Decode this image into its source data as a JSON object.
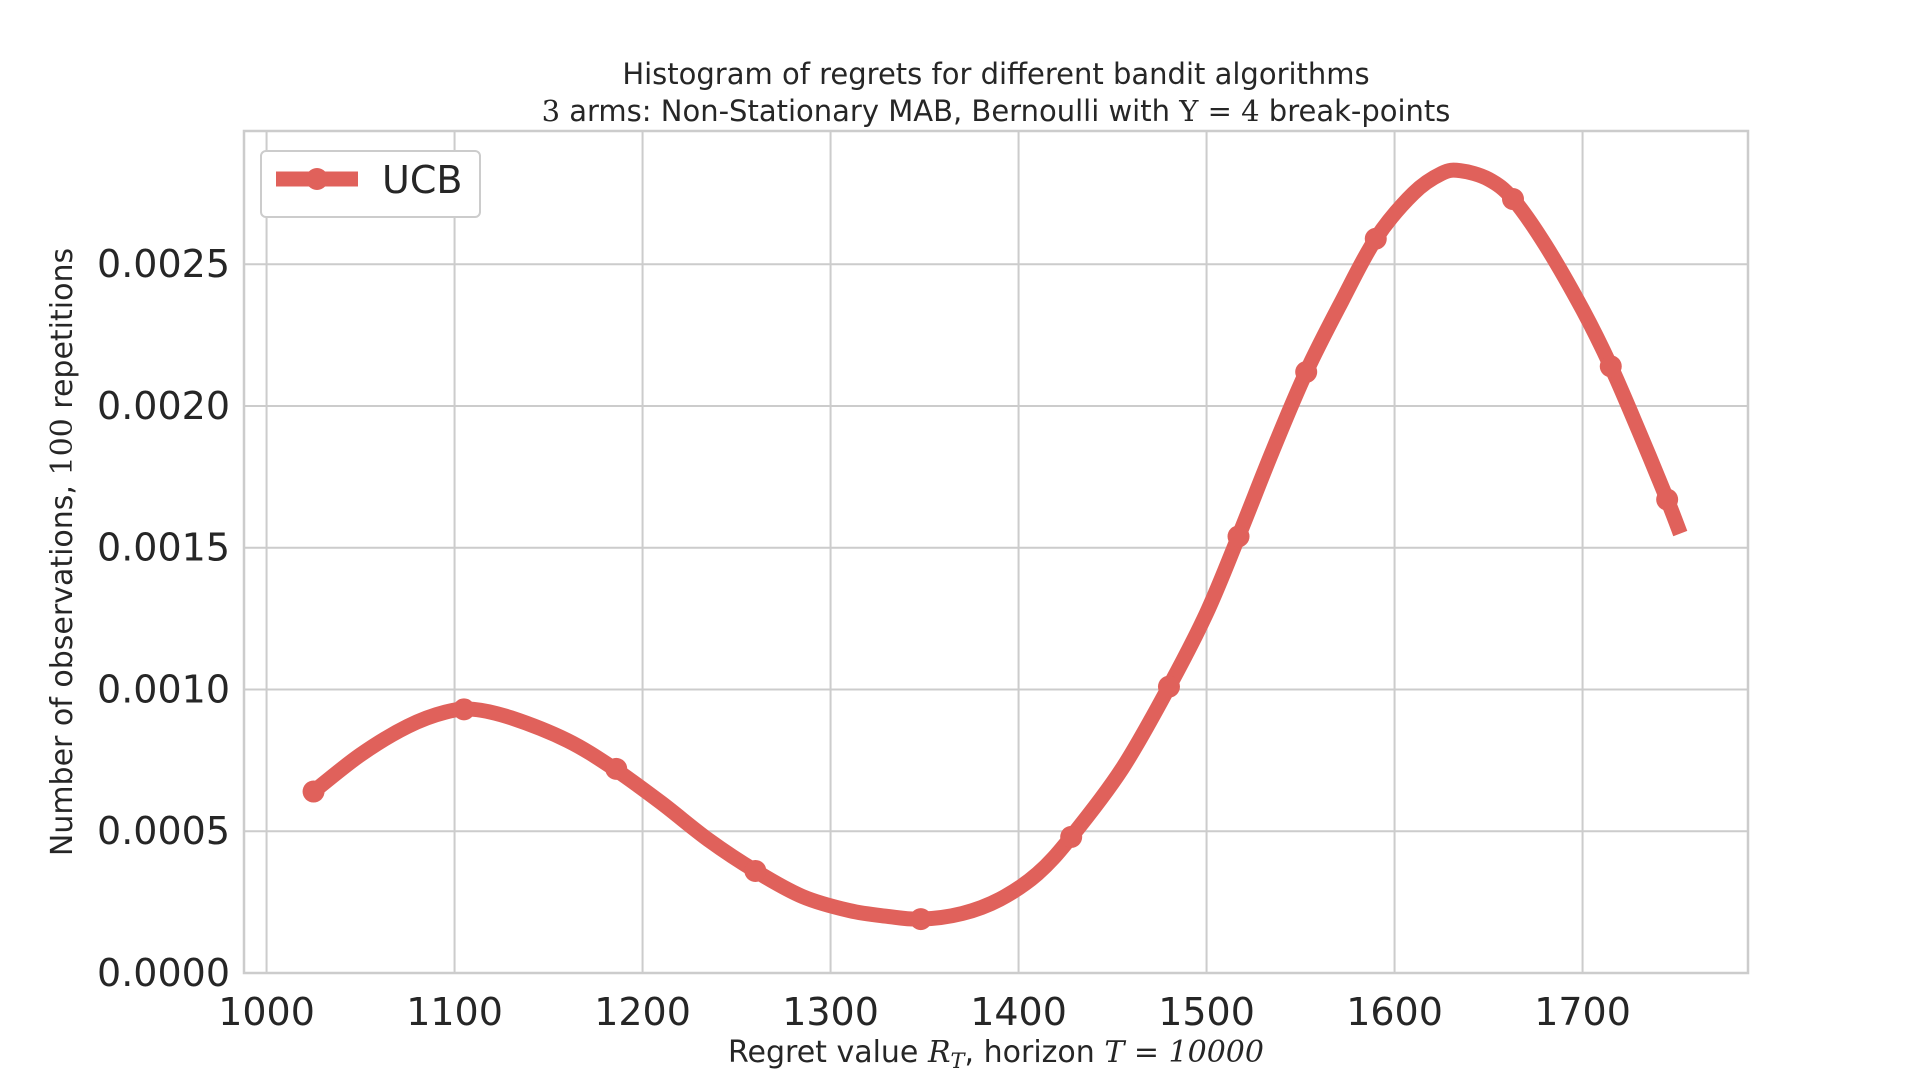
{
  "chart_data": {
    "type": "line",
    "title_line1": "Histogram of regrets for different bandit algorithms",
    "title_line2": {
      "n_arms": "3",
      "middle": " arms: Non-Stationary MAB, Bernoulli with ",
      "upsilon": "Υ = 4",
      "end": " break-points"
    },
    "xlabel": {
      "prefix": "Regret value ",
      "var": "R",
      "sub": "T",
      "middle": ", horizon ",
      "horizon": "T = 10000"
    },
    "ylabel": {
      "prefix": "Number of observations, ",
      "reps": "100",
      "suffix": " repetitions"
    },
    "xlim": [
      988,
      1788
    ],
    "ylim": [
      0,
      0.00297
    ],
    "xticks": [
      1000,
      1100,
      1200,
      1300,
      1400,
      1500,
      1600,
      1700
    ],
    "xtick_labels": [
      "1000",
      "1100",
      "1200",
      "1300",
      "1400",
      "1500",
      "1600",
      "1700"
    ],
    "yticks": [
      0,
      0.0005,
      0.001,
      0.0015,
      0.002,
      0.0025
    ],
    "ytick_labels": [
      "0.0000",
      "0.0005",
      "0.0010",
      "0.0015",
      "0.0020",
      "0.0025"
    ],
    "grid": true,
    "legend_position": "top-left",
    "series": [
      {
        "name": "UCB",
        "color": "#e0615b",
        "curve": [
          [
            1025,
            0.00064
          ],
          [
            1050,
            0.00077
          ],
          [
            1075,
            0.00087
          ],
          [
            1095,
            0.00092
          ],
          [
            1110,
            0.00093
          ],
          [
            1130,
            0.0009
          ],
          [
            1160,
            0.00082
          ],
          [
            1185,
            0.00072
          ],
          [
            1210,
            0.0006
          ],
          [
            1235,
            0.00047
          ],
          [
            1260,
            0.00036
          ],
          [
            1285,
            0.00027
          ],
          [
            1310,
            0.00022
          ],
          [
            1330,
            0.0002
          ],
          [
            1348,
            0.00019
          ],
          [
            1370,
            0.00021
          ],
          [
            1390,
            0.00026
          ],
          [
            1410,
            0.00035
          ],
          [
            1428,
            0.00048
          ],
          [
            1455,
            0.00072
          ],
          [
            1480,
            0.00101
          ],
          [
            1500,
            0.00127
          ],
          [
            1517,
            0.00154
          ],
          [
            1535,
            0.00184
          ],
          [
            1553,
            0.00212
          ],
          [
            1572,
            0.00237
          ],
          [
            1590,
            0.00259
          ],
          [
            1610,
            0.00275
          ],
          [
            1625,
            0.00282
          ],
          [
            1635,
            0.00283
          ],
          [
            1650,
            0.0028
          ],
          [
            1663,
            0.00273
          ],
          [
            1680,
            0.00257
          ],
          [
            1700,
            0.00234
          ],
          [
            1715,
            0.00214
          ],
          [
            1730,
            0.00191
          ],
          [
            1745,
            0.00167
          ],
          [
            1752,
            0.00155
          ]
        ],
        "markers": [
          [
            1025,
            0.00064
          ],
          [
            1105,
            0.00093
          ],
          [
            1186,
            0.00072
          ],
          [
            1260,
            0.00036
          ],
          [
            1348,
            0.00019
          ],
          [
            1428,
            0.00048
          ],
          [
            1480,
            0.00101
          ],
          [
            1517,
            0.00154
          ],
          [
            1553,
            0.00212
          ],
          [
            1590,
            0.00259
          ],
          [
            1663,
            0.00273
          ],
          [
            1715,
            0.00214
          ],
          [
            1745,
            0.00167
          ]
        ]
      }
    ]
  }
}
